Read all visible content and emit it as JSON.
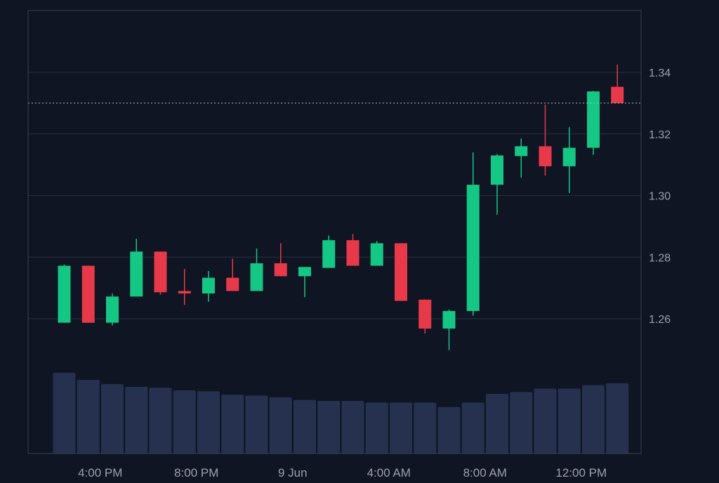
{
  "colors": {
    "background": "#0f1522",
    "grid": "#2a3140",
    "frame": "#3a4150",
    "up": "#15c784",
    "down": "#e8394a",
    "volume": "#263150",
    "axis_text": "#9aa1ad",
    "price_line": "#b8bec8"
  },
  "chart_data": {
    "type": "candlestick",
    "title": "",
    "xlabel": "",
    "ylabel": "",
    "ylim": [
      1.24,
      1.362
    ],
    "y_ticks": [
      "1.26",
      "1.28",
      "1.30",
      "1.32",
      "1.34"
    ],
    "x_tick_labels": [
      "4:00 PM",
      "8:00 PM",
      "9 Jun",
      "4:00 AM",
      "8:00 AM",
      "12:00 PM"
    ],
    "x_tick_candle_index": [
      1,
      5,
      9,
      13,
      17,
      21
    ],
    "current_price": 1.33,
    "grid": "horizontal",
    "volume_scale_max": 1.0,
    "candles": [
      {
        "open": 1.2587,
        "high": 1.2776,
        "low": 1.2587,
        "close": 1.2772,
        "volume": 0.92
      },
      {
        "open": 1.2772,
        "high": 1.2772,
        "low": 1.2587,
        "close": 1.2587,
        "volume": 0.84
      },
      {
        "open": 1.2587,
        "high": 1.2682,
        "low": 1.2578,
        "close": 1.2672,
        "volume": 0.79
      },
      {
        "open": 1.2672,
        "high": 1.286,
        "low": 1.2672,
        "close": 1.2818,
        "volume": 0.76
      },
      {
        "open": 1.2818,
        "high": 1.2818,
        "low": 1.2678,
        "close": 1.2686,
        "volume": 0.75
      },
      {
        "open": 1.269,
        "high": 1.2762,
        "low": 1.2645,
        "close": 1.2682,
        "volume": 0.72
      },
      {
        "open": 1.2682,
        "high": 1.2755,
        "low": 1.2655,
        "close": 1.2733,
        "volume": 0.71
      },
      {
        "open": 1.2733,
        "high": 1.2795,
        "low": 1.269,
        "close": 1.269,
        "volume": 0.67
      },
      {
        "open": 1.269,
        "high": 1.2828,
        "low": 1.269,
        "close": 1.278,
        "volume": 0.66
      },
      {
        "open": 1.278,
        "high": 1.2845,
        "low": 1.2738,
        "close": 1.2738,
        "volume": 0.64
      },
      {
        "open": 1.2738,
        "high": 1.2768,
        "low": 1.267,
        "close": 1.2768,
        "volume": 0.61
      },
      {
        "open": 1.2765,
        "high": 1.287,
        "low": 1.2765,
        "close": 1.2855,
        "volume": 0.6
      },
      {
        "open": 1.2855,
        "high": 1.2875,
        "low": 1.2772,
        "close": 1.2772,
        "volume": 0.6
      },
      {
        "open": 1.2772,
        "high": 1.2852,
        "low": 1.2772,
        "close": 1.2845,
        "volume": 0.58
      },
      {
        "open": 1.2845,
        "high": 1.2845,
        "low": 1.2658,
        "close": 1.2658,
        "volume": 0.58
      },
      {
        "open": 1.2662,
        "high": 1.2662,
        "low": 1.2552,
        "close": 1.2568,
        "volume": 0.58
      },
      {
        "open": 1.2568,
        "high": 1.263,
        "low": 1.2498,
        "close": 1.2625,
        "volume": 0.53
      },
      {
        "open": 1.2625,
        "high": 1.314,
        "low": 1.261,
        "close": 1.3035,
        "volume": 0.58
      },
      {
        "open": 1.3035,
        "high": 1.3135,
        "low": 1.2938,
        "close": 1.313,
        "volume": 0.68
      },
      {
        "open": 1.3128,
        "high": 1.3185,
        "low": 1.3058,
        "close": 1.316,
        "volume": 0.7
      },
      {
        "open": 1.316,
        "high": 1.3295,
        "low": 1.3065,
        "close": 1.3095,
        "volume": 0.74
      },
      {
        "open": 1.3095,
        "high": 1.3222,
        "low": 1.3008,
        "close": 1.3155,
        "volume": 0.74
      },
      {
        "open": 1.3155,
        "high": 1.334,
        "low": 1.3132,
        "close": 1.3338,
        "volume": 0.78
      },
      {
        "open": 1.3353,
        "high": 1.3425,
        "low": 1.33,
        "close": 1.33,
        "volume": 0.8
      }
    ]
  }
}
